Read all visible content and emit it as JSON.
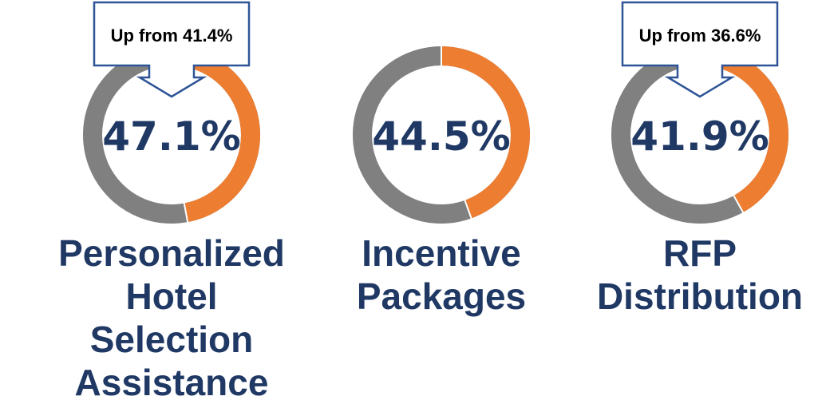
{
  "colors": {
    "track": "#808080",
    "accent": "#ed7d31",
    "text": "#1f3864",
    "callout_border": "#2f5597"
  },
  "chart_data": [
    {
      "type": "pie",
      "variant": "donut",
      "value": 47.1,
      "value_label": "47.1%",
      "label_lines": [
        "Personalized",
        "Hotel Selection",
        "Assistance"
      ],
      "callout": "Up from 41.4%"
    },
    {
      "type": "pie",
      "variant": "donut",
      "value": 44.5,
      "value_label": "44.5%",
      "label_lines": [
        "Incentive",
        "Packages"
      ],
      "callout": ""
    },
    {
      "type": "pie",
      "variant": "donut",
      "value": 41.9,
      "value_label": "41.9%",
      "label_lines": [
        "RFP",
        "Distribution"
      ],
      "callout": "Up from 36.6%"
    }
  ]
}
